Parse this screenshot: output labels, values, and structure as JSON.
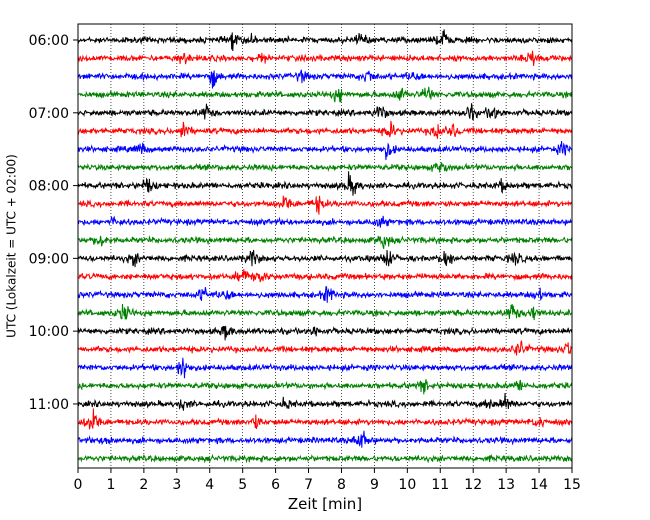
{
  "chart_data": {
    "type": "line",
    "title": "",
    "xlabel": "Zeit  [min]",
    "ylabel": "UTC (Lokalzeit = UTC + 02:00)",
    "xlim": [
      0,
      15
    ],
    "x_ticks": [
      "0",
      "1",
      "2",
      "3",
      "4",
      "5",
      "6",
      "7",
      "8",
      "9",
      "10",
      "11",
      "12",
      "13",
      "14",
      "15"
    ],
    "y_tick_labels": [
      "06:00",
      "07:00",
      "08:00",
      "09:00",
      "10:00",
      "11:00"
    ],
    "grid": "vertical dotted lines at each minute",
    "trace_interval_minutes": 15,
    "color_cycle": [
      "#000000",
      "#ff0000",
      "#0000ff",
      "#008000"
    ],
    "traces": [
      {
        "start": "06:00",
        "color": "#000000",
        "events": [
          [
            4.7,
            0.8
          ],
          [
            5.3,
            0.5
          ],
          [
            8.6,
            0.8
          ],
          [
            11.1,
            1.1
          ]
        ]
      },
      {
        "start": "06:15",
        "color": "#ff0000",
        "events": [
          [
            3.2,
            0.7
          ],
          [
            5.6,
            0.4
          ],
          [
            13.8,
            1.0
          ]
        ]
      },
      {
        "start": "06:30",
        "color": "#0000ff",
        "events": [
          [
            4.1,
            1.0
          ],
          [
            6.8,
            0.6
          ],
          [
            8.8,
            0.8
          ],
          [
            10.2,
            0.6
          ]
        ]
      },
      {
        "start": "06:45",
        "color": "#008000",
        "events": [
          [
            7.9,
            0.9
          ],
          [
            9.8,
            0.8
          ],
          [
            10.6,
            1.0
          ]
        ]
      },
      {
        "start": "07:00",
        "color": "#000000",
        "events": [
          [
            3.9,
            0.9
          ],
          [
            9.2,
            1.1
          ],
          [
            11.9,
            1.0
          ],
          [
            12.6,
            0.9
          ]
        ]
      },
      {
        "start": "07:15",
        "color": "#ff0000",
        "events": [
          [
            3.2,
            0.9
          ],
          [
            9.5,
            0.9
          ],
          [
            10.9,
            1.1
          ],
          [
            11.4,
            0.7
          ]
        ]
      },
      {
        "start": "07:30",
        "color": "#0000ff",
        "events": [
          [
            1.9,
            0.7
          ],
          [
            9.4,
            0.9
          ],
          [
            14.7,
            0.7
          ]
        ]
      },
      {
        "start": "07:45",
        "color": "#008000",
        "events": [
          [
            11.0,
            0.9
          ]
        ]
      },
      {
        "start": "08:00",
        "color": "#000000",
        "events": [
          [
            2.1,
            0.9
          ],
          [
            8.2,
            0.7
          ],
          [
            8.4,
            1.0
          ],
          [
            12.9,
            0.6
          ]
        ]
      },
      {
        "start": "08:15",
        "color": "#ff0000",
        "events": [
          [
            6.3,
            1.0
          ],
          [
            7.3,
            1.0
          ]
        ]
      },
      {
        "start": "08:30",
        "color": "#0000ff",
        "events": [
          [
            1.1,
            0.5
          ],
          [
            9.2,
            0.6
          ]
        ]
      },
      {
        "start": "08:45",
        "color": "#008000",
        "events": [
          [
            0.7,
            0.9
          ],
          [
            9.3,
            1.0
          ]
        ]
      },
      {
        "start": "09:00",
        "color": "#000000",
        "events": [
          [
            1.7,
            0.8
          ],
          [
            5.3,
            1.0
          ],
          [
            9.4,
            1.1
          ],
          [
            11.2,
            1.1
          ],
          [
            13.3,
            0.8
          ]
        ]
      },
      {
        "start": "09:15",
        "color": "#ff0000",
        "events": [
          [
            5.0,
            0.9
          ],
          [
            5.5,
            0.8
          ]
        ]
      },
      {
        "start": "09:30",
        "color": "#0000ff",
        "events": [
          [
            3.8,
            0.8
          ],
          [
            4.5,
            0.7
          ],
          [
            7.6,
            1.0
          ],
          [
            14.0,
            0.7
          ]
        ]
      },
      {
        "start": "09:45",
        "color": "#008000",
        "events": [
          [
            1.4,
            1.2
          ],
          [
            13.2,
            1.2
          ],
          [
            13.8,
            0.8
          ]
        ]
      },
      {
        "start": "10:00",
        "color": "#000000",
        "events": [
          [
            4.5,
            0.8
          ],
          [
            7.2,
            0.5
          ]
        ]
      },
      {
        "start": "10:15",
        "color": "#ff0000",
        "events": [
          [
            13.4,
            1.1
          ],
          [
            14.9,
            0.9
          ]
        ]
      },
      {
        "start": "10:30",
        "color": "#0000ff",
        "events": [
          [
            3.2,
            1.6
          ]
        ]
      },
      {
        "start": "10:45",
        "color": "#008000",
        "events": [
          [
            10.5,
            0.7
          ],
          [
            13.4,
            0.6
          ]
        ]
      },
      {
        "start": "11:00",
        "color": "#000000",
        "events": [
          [
            3.2,
            0.6
          ],
          [
            6.3,
            0.5
          ],
          [
            12.5,
            0.6
          ],
          [
            13.0,
            1.0
          ]
        ]
      },
      {
        "start": "11:15",
        "color": "#ff0000",
        "events": [
          [
            0.4,
            1.0
          ],
          [
            0.5,
            0.8
          ],
          [
            5.4,
            0.7
          ],
          [
            14.0,
            0.6
          ]
        ]
      },
      {
        "start": "11:30",
        "color": "#0000ff",
        "events": [
          [
            0.9,
            0.6
          ],
          [
            8.5,
            0.7
          ],
          [
            8.7,
            0.7
          ]
        ]
      },
      {
        "start": "11:45",
        "color": "#008000",
        "events": []
      }
    ]
  }
}
